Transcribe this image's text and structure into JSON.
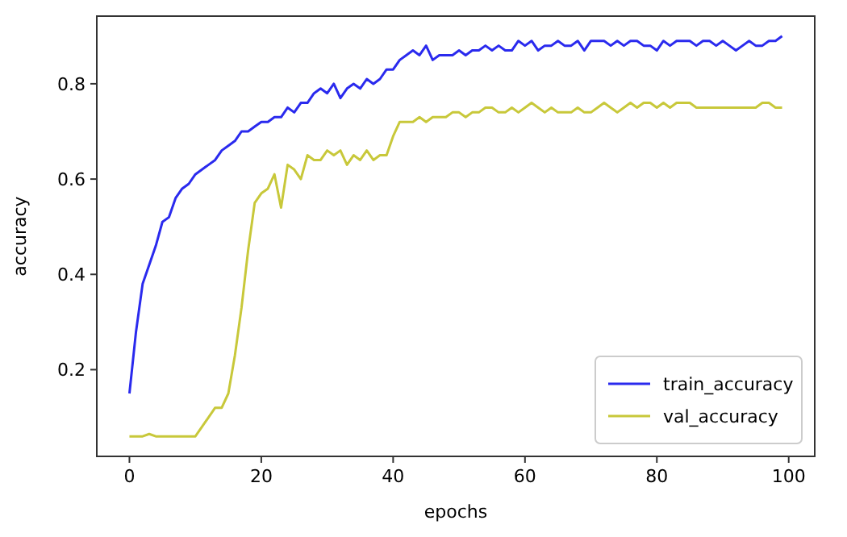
{
  "chart_data": {
    "type": "line",
    "xlabel": "epochs",
    "ylabel": "accuracy",
    "x": [
      0,
      1,
      2,
      3,
      4,
      5,
      6,
      7,
      8,
      9,
      10,
      11,
      12,
      13,
      14,
      15,
      16,
      17,
      18,
      19,
      20,
      21,
      22,
      23,
      24,
      25,
      26,
      27,
      28,
      29,
      30,
      31,
      32,
      33,
      34,
      35,
      36,
      37,
      38,
      39,
      40,
      41,
      42,
      43,
      44,
      45,
      46,
      47,
      48,
      49,
      50,
      51,
      52,
      53,
      54,
      55,
      56,
      57,
      58,
      59,
      60,
      61,
      62,
      63,
      64,
      65,
      66,
      67,
      68,
      69,
      70,
      71,
      72,
      73,
      74,
      75,
      76,
      77,
      78,
      79,
      80,
      81,
      82,
      83,
      84,
      85,
      86,
      87,
      88,
      89,
      90,
      91,
      92,
      93,
      94,
      95,
      96,
      97,
      98,
      99
    ],
    "series": [
      {
        "name": "train_accuracy",
        "color": "#2a2aee",
        "values": [
          0.15,
          0.28,
          0.38,
          0.42,
          0.46,
          0.51,
          0.52,
          0.56,
          0.58,
          0.59,
          0.61,
          0.62,
          0.63,
          0.64,
          0.66,
          0.67,
          0.68,
          0.7,
          0.7,
          0.71,
          0.72,
          0.72,
          0.73,
          0.73,
          0.75,
          0.74,
          0.76,
          0.76,
          0.78,
          0.79,
          0.78,
          0.8,
          0.77,
          0.79,
          0.8,
          0.79,
          0.81,
          0.8,
          0.81,
          0.83,
          0.83,
          0.85,
          0.86,
          0.87,
          0.86,
          0.88,
          0.85,
          0.86,
          0.86,
          0.86,
          0.87,
          0.86,
          0.87,
          0.87,
          0.88,
          0.87,
          0.88,
          0.87,
          0.87,
          0.89,
          0.88,
          0.89,
          0.87,
          0.88,
          0.88,
          0.89,
          0.88,
          0.88,
          0.89,
          0.87,
          0.89,
          0.89,
          0.89,
          0.88,
          0.89,
          0.88,
          0.89,
          0.89,
          0.88,
          0.88,
          0.87,
          0.89,
          0.88,
          0.89,
          0.89,
          0.89,
          0.88,
          0.89,
          0.89,
          0.88,
          0.89,
          0.88,
          0.87,
          0.88,
          0.89,
          0.88,
          0.88,
          0.89,
          0.89,
          0.9
        ]
      },
      {
        "name": "val_accuracy",
        "color": "#c8c83a",
        "values": [
          0.06,
          0.06,
          0.06,
          0.065,
          0.06,
          0.06,
          0.06,
          0.06,
          0.06,
          0.06,
          0.06,
          0.08,
          0.1,
          0.12,
          0.12,
          0.15,
          0.23,
          0.33,
          0.45,
          0.55,
          0.57,
          0.58,
          0.61,
          0.54,
          0.63,
          0.62,
          0.6,
          0.65,
          0.64,
          0.64,
          0.66,
          0.65,
          0.66,
          0.63,
          0.65,
          0.64,
          0.66,
          0.64,
          0.65,
          0.65,
          0.69,
          0.72,
          0.72,
          0.72,
          0.73,
          0.72,
          0.73,
          0.73,
          0.73,
          0.74,
          0.74,
          0.73,
          0.74,
          0.74,
          0.75,
          0.75,
          0.74,
          0.74,
          0.75,
          0.74,
          0.75,
          0.76,
          0.75,
          0.74,
          0.75,
          0.74,
          0.74,
          0.74,
          0.75,
          0.74,
          0.74,
          0.75,
          0.76,
          0.75,
          0.74,
          0.75,
          0.76,
          0.75,
          0.76,
          0.76,
          0.75,
          0.76,
          0.75,
          0.76,
          0.76,
          0.76,
          0.75,
          0.75,
          0.75,
          0.75,
          0.75,
          0.75,
          0.75,
          0.75,
          0.75,
          0.75,
          0.76,
          0.76,
          0.75,
          0.75
        ]
      }
    ],
    "xlim": [
      -4.95,
      103.95
    ],
    "ylim": [
      0.018,
      0.942
    ],
    "xticks": [
      0,
      20,
      40,
      60,
      80,
      100
    ],
    "yticks": [
      0.2,
      0.4,
      0.6,
      0.8
    ],
    "legend": "bottom right",
    "grid": false,
    "marker": "none",
    "line_style": "solid"
  }
}
